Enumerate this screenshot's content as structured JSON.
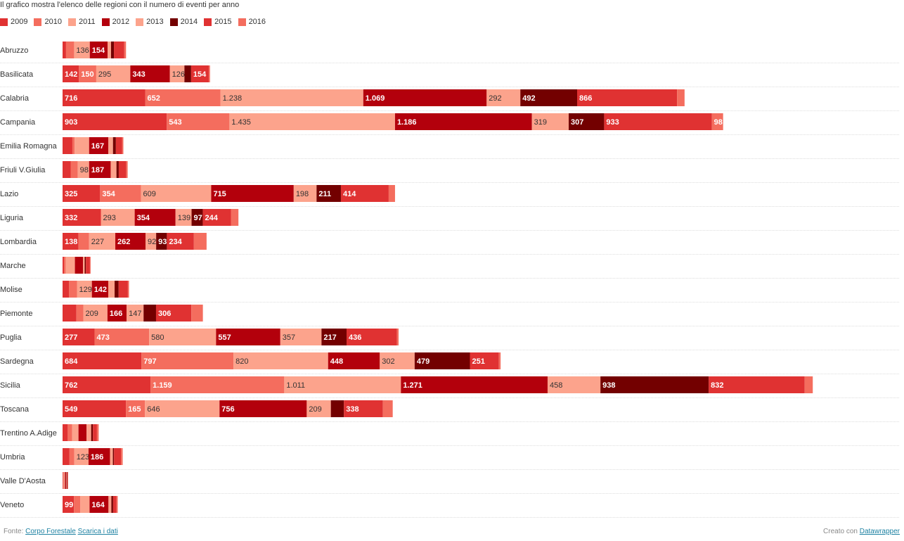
{
  "subtitle": "Il grafico mostra l'elenco delle regioni con il numero di eventi per anno",
  "footer": {
    "source_prefix": "Fonte:",
    "source_link": "Corpo Forestale",
    "download_link": "Scarica i dati",
    "credit_prefix": "Creato con",
    "credit_link": "Datawrapper"
  },
  "chart_data": {
    "type": "bar",
    "orientation": "horizontal",
    "stacked": true,
    "xlim": [
      0,
      7255
    ],
    "grid": false,
    "legend_position": "top-left",
    "categories": [
      "Abruzzo",
      "Basilicata",
      "Calabria",
      "Campania",
      "Emilia Romagna",
      "Friuli V.Giulia",
      "Lazio",
      "Liguria",
      "Lombardia",
      "Marche",
      "Molise",
      "Piemonte",
      "Puglia",
      "Sardegna",
      "Sicilia",
      "Toscana",
      "Trentino A.Adige",
      "Umbria",
      "Valle D'Aosta",
      "Veneto"
    ],
    "series": [
      {
        "name": "2009",
        "color": "#e03232",
        "values": [
          30,
          142,
          716,
          903,
          85,
          70,
          325,
          332,
          138,
          12,
          55,
          120,
          277,
          684,
          762,
          549,
          45,
          60,
          5,
          99
        ]
      },
      {
        "name": "2010",
        "color": "#f46d5e",
        "values": [
          70,
          150,
          652,
          543,
          20,
          62,
          354,
          0,
          92,
          15,
          70,
          60,
          473,
          797,
          1159,
          165,
          38,
          42,
          5,
          55
        ]
      },
      {
        "name": "2011",
        "color": "#fca38c",
        "values": [
          136,
          295,
          1238,
          1435,
          125,
          98,
          609,
          293,
          227,
          80,
          129,
          209,
          580,
          820,
          1011,
          646,
          55,
          123,
          10,
          80
        ]
      },
      {
        "name": "2012",
        "color": "#b3000c",
        "values": [
          154,
          343,
          1069,
          1186,
          167,
          187,
          715,
          354,
          262,
          70,
          142,
          166,
          557,
          448,
          1271,
          756,
          70,
          186,
          10,
          164
        ]
      },
      {
        "name": "2013",
        "color": "#fca38c",
        "values": [
          30,
          126,
          292,
          319,
          40,
          50,
          198,
          139,
          92,
          15,
          55,
          147,
          357,
          302,
          458,
          209,
          40,
          25,
          5,
          25
        ]
      },
      {
        "name": "2014",
        "color": "#730000",
        "values": [
          25,
          58,
          492,
          307,
          25,
          20,
          211,
          97,
          93,
          10,
          35,
          108,
          217,
          479,
          938,
          113,
          15,
          10,
          5,
          15
        ]
      },
      {
        "name": "2015",
        "color": "#e03232",
        "values": [
          90,
          154,
          866,
          933,
          55,
          65,
          414,
          244,
          234,
          35,
          80,
          306,
          436,
          251,
          832,
          338,
          35,
          60,
          5,
          30
        ]
      },
      {
        "name": "2016",
        "color": "#f46d5e",
        "values": [
          15,
          10,
          65,
          98,
          10,
          12,
          55,
          65,
          110,
          6,
          10,
          100,
          15,
          15,
          70,
          85,
          15,
          15,
          3,
          10
        ]
      }
    ],
    "data_labels": [
      [
        "",
        "",
        "136",
        "154",
        "",
        "",
        "",
        ""
      ],
      [
        "142",
        "150",
        "295",
        "343",
        "126",
        "",
        "154",
        ""
      ],
      [
        "716",
        "652",
        "1.238",
        "1.069",
        "292",
        "492",
        "866",
        ""
      ],
      [
        "903",
        "543",
        "1.435",
        "1.186",
        "319",
        "307",
        "933",
        "98"
      ],
      [
        "",
        "",
        "",
        "167",
        "",
        "",
        "",
        ""
      ],
      [
        "",
        "",
        "98",
        "187",
        "",
        "",
        "",
        ""
      ],
      [
        "325",
        "354",
        "609",
        "715",
        "198",
        "211",
        "414",
        ""
      ],
      [
        "332",
        "",
        "293",
        "354",
        "139",
        "97",
        "244",
        ""
      ],
      [
        "138",
        "",
        "227",
        "262",
        "92",
        "93",
        "234",
        ""
      ],
      [
        "",
        "",
        "",
        "",
        "",
        "",
        "",
        ""
      ],
      [
        "",
        "",
        "129",
        "142",
        "",
        "",
        "",
        ""
      ],
      [
        "",
        "",
        "209",
        "166",
        "147",
        "",
        "306",
        ""
      ],
      [
        "277",
        "473",
        "580",
        "557",
        "357",
        "217",
        "436",
        ""
      ],
      [
        "684",
        "797",
        "820",
        "448",
        "302",
        "479",
        "251",
        ""
      ],
      [
        "762",
        "1.159",
        "1.011",
        "1.271",
        "458",
        "938",
        "832",
        ""
      ],
      [
        "549",
        "165",
        "646",
        "756",
        "209",
        "",
        "338",
        ""
      ],
      [
        "",
        "",
        "",
        "",
        "",
        "",
        "",
        ""
      ],
      [
        "",
        "",
        "123",
        "186",
        "",
        "",
        "",
        ""
      ],
      [
        "",
        "",
        "",
        "",
        "",
        "",
        "",
        ""
      ],
      [
        "99",
        "",
        "",
        "164",
        "",
        "",
        "",
        ""
      ]
    ]
  }
}
